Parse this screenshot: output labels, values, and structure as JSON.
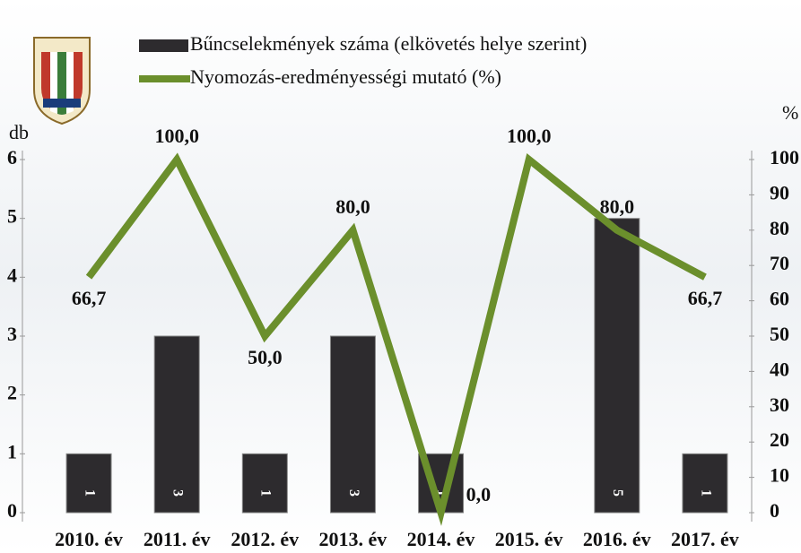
{
  "chart_data": {
    "type": "bar-line",
    "legend": [
      "Bűncselekmények száma (elkövetés helye szerint)",
      "Nyomozás-eredményességi mutató (%)"
    ],
    "ylabel": "db",
    "y2label": "%",
    "categories": [
      "2010. év",
      "2011. év",
      "2012. év",
      "2013. év",
      "2014. év",
      "2015. év",
      "2016. év",
      "2017. év"
    ],
    "series": [
      {
        "name": "Bűncselekmények száma (elkövetés helye szerint)",
        "type": "bar",
        "color": "#2d2b2e",
        "values": [
          1,
          3,
          1,
          3,
          1,
          0,
          5,
          1
        ]
      },
      {
        "name": "Nyomozás-eredményességi mutató (%)",
        "type": "line",
        "axis": "y2",
        "color": "#6b8f2c",
        "values": [
          66.7,
          100,
          50,
          80,
          0,
          100,
          80,
          66.7
        ],
        "value_labels": [
          "66,7",
          "100,0",
          "50,0",
          "80,0",
          "0,0",
          "100,0",
          "80,0",
          "66,7"
        ]
      }
    ],
    "ylim": [
      0,
      6
    ],
    "yticks": [
      0,
      1,
      2,
      3,
      4,
      5,
      6
    ],
    "y2lim": [
      0,
      100
    ],
    "y2ticks": [
      0,
      10,
      20,
      30,
      40,
      50,
      60,
      70,
      80,
      90,
      100
    ]
  }
}
